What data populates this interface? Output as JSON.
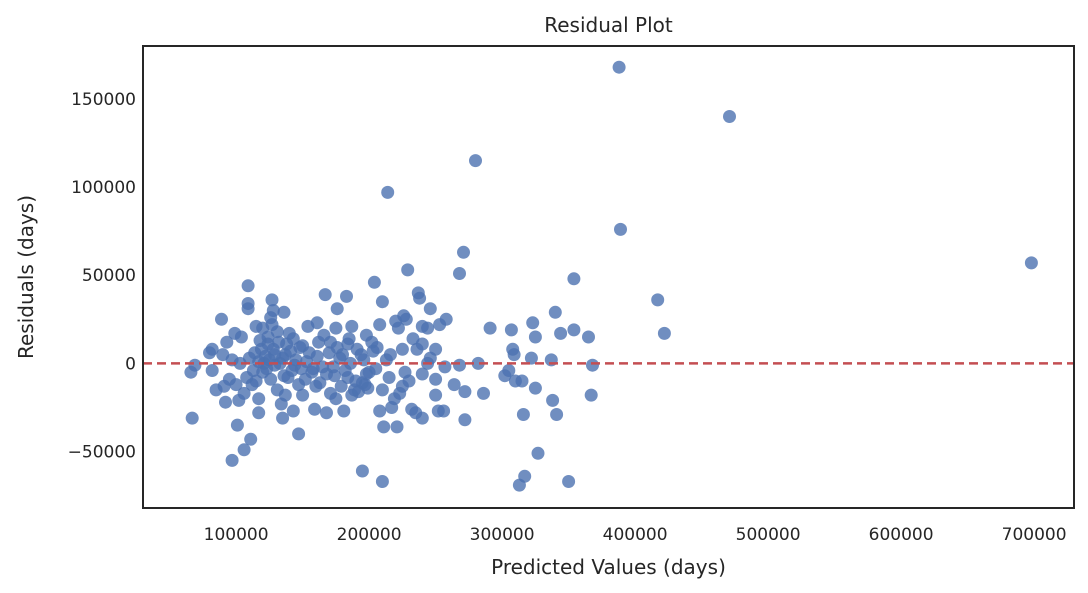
{
  "chart_data": {
    "type": "scatter",
    "title": "Residual Plot",
    "xlabel": "Predicted Values (days)",
    "ylabel": "Residuals (days)",
    "xlim": [
      30000,
      730000
    ],
    "ylim": [
      -82000,
      180000
    ],
    "xticks": [
      100000,
      200000,
      300000,
      400000,
      500000,
      600000,
      700000
    ],
    "yticks": [
      -50000,
      0,
      50000,
      100000,
      150000
    ],
    "grid": false,
    "point_color": "#4c72b0",
    "reference_line": {
      "y": 0,
      "color": "#c44e52",
      "style": "dashed"
    },
    "series": [
      {
        "points": [
          [
            388000,
            168000
          ],
          [
            471000,
            140000
          ],
          [
            280000,
            115000
          ],
          [
            214000,
            97000
          ],
          [
            389000,
            76000
          ],
          [
            698000,
            57000
          ],
          [
            271000,
            63000
          ],
          [
            229000,
            53000
          ],
          [
            268000,
            51000
          ],
          [
            354000,
            48000
          ],
          [
            204000,
            46000
          ],
          [
            109000,
            44000
          ],
          [
            237000,
            40000
          ],
          [
            167000,
            39000
          ],
          [
            183000,
            38000
          ],
          [
            417000,
            36000
          ],
          [
            127000,
            36000
          ],
          [
            238000,
            37000
          ],
          [
            210000,
            35000
          ],
          [
            109000,
            34000
          ],
          [
            340000,
            29000
          ],
          [
            109000,
            31000
          ],
          [
            128000,
            30000
          ],
          [
            136000,
            29000
          ],
          [
            176000,
            31000
          ],
          [
            246000,
            31000
          ],
          [
            258000,
            25000
          ],
          [
            89000,
            25000
          ],
          [
            226000,
            27000
          ],
          [
            253000,
            22000
          ],
          [
            228000,
            25000
          ],
          [
            220000,
            24000
          ],
          [
            208000,
            22000
          ],
          [
            187000,
            21000
          ],
          [
            175000,
            20000
          ],
          [
            154000,
            21000
          ],
          [
            127000,
            22000
          ],
          [
            115000,
            21000
          ],
          [
            222000,
            20000
          ],
          [
            244000,
            20000
          ],
          [
            240000,
            21000
          ],
          [
            291000,
            20000
          ],
          [
            307000,
            19000
          ],
          [
            354000,
            19000
          ],
          [
            323000,
            23000
          ],
          [
            422000,
            17000
          ],
          [
            365000,
            15000
          ],
          [
            344000,
            17000
          ],
          [
            325000,
            15000
          ],
          [
            240000,
            11000
          ],
          [
            236000,
            8000
          ],
          [
            250000,
            8000
          ],
          [
            308000,
            8000
          ],
          [
            309000,
            5000
          ],
          [
            322000,
            3000
          ],
          [
            337000,
            2000
          ],
          [
            368000,
            -1000
          ],
          [
            282000,
            0
          ],
          [
            268000,
            -1000
          ],
          [
            257000,
            -2000
          ],
          [
            244000,
            0
          ],
          [
            227000,
            -5000
          ],
          [
            213000,
            2000
          ],
          [
            198000,
            16000
          ],
          [
            184000,
            11000
          ],
          [
            161000,
            23000
          ],
          [
            150000,
            10000
          ],
          [
            140000,
            17000
          ],
          [
            132000,
            12000
          ],
          [
            124000,
            15000
          ],
          [
            118000,
            13000
          ],
          [
            104000,
            15000
          ],
          [
            99000,
            17000
          ],
          [
            93000,
            12000
          ],
          [
            82000,
            8000
          ],
          [
            80000,
            6000
          ],
          [
            69000,
            -1000
          ],
          [
            66000,
            -5000
          ],
          [
            67000,
            -31000
          ],
          [
            82000,
            -4000
          ],
          [
            90000,
            5000
          ],
          [
            97000,
            2000
          ],
          [
            103000,
            0
          ],
          [
            110000,
            3000
          ],
          [
            114000,
            6000
          ],
          [
            119000,
            8000
          ],
          [
            122000,
            4000
          ],
          [
            125000,
            2000
          ],
          [
            129000,
            -1000
          ],
          [
            133000,
            0
          ],
          [
            137000,
            5000
          ],
          [
            141000,
            7000
          ],
          [
            145000,
            2000
          ],
          [
            149000,
            -3000
          ],
          [
            153000,
            1000
          ],
          [
            157000,
            -5000
          ],
          [
            161000,
            4000
          ],
          [
            165000,
            -2000
          ],
          [
            170000,
            6000
          ],
          [
            174000,
            -7000
          ],
          [
            178000,
            3000
          ],
          [
            182000,
            -4000
          ],
          [
            186000,
            0
          ],
          [
            190000,
            -10000
          ],
          [
            194000,
            5000
          ],
          [
            198000,
            -6000
          ],
          [
            202000,
            12000
          ],
          [
            206000,
            9000
          ],
          [
            115000,
            -10000
          ],
          [
            120000,
            -5000
          ],
          [
            126000,
            -9000
          ],
          [
            131000,
            -15000
          ],
          [
            136000,
            -7000
          ],
          [
            142000,
            -4000
          ],
          [
            147000,
            -12000
          ],
          [
            152000,
            -9000
          ],
          [
            158000,
            -3000
          ],
          [
            163000,
            -11000
          ],
          [
            168000,
            -6000
          ],
          [
            173000,
            -2000
          ],
          [
            179000,
            -13000
          ],
          [
            184000,
            -8000
          ],
          [
            189000,
            -15000
          ],
          [
            195000,
            -11000
          ],
          [
            200000,
            -5000
          ],
          [
            85000,
            -15000
          ],
          [
            91000,
            -13000
          ],
          [
            95000,
            -9000
          ],
          [
            100000,
            -12000
          ],
          [
            106000,
            -17000
          ],
          [
            112000,
            -12000
          ],
          [
            117000,
            -20000
          ],
          [
            92000,
            -22000
          ],
          [
            102000,
            -21000
          ],
          [
            117000,
            -28000
          ],
          [
            134000,
            -23000
          ],
          [
            143000,
            -27000
          ],
          [
            159000,
            -26000
          ],
          [
            168000,
            -28000
          ],
          [
            181000,
            -27000
          ],
          [
            192000,
            -16000
          ],
          [
            197000,
            -12000
          ],
          [
            210000,
            -15000
          ],
          [
            219000,
            -20000
          ],
          [
            223000,
            -17000
          ],
          [
            232000,
            -26000
          ],
          [
            240000,
            -31000
          ],
          [
            221000,
            -36000
          ],
          [
            211000,
            -36000
          ],
          [
            208000,
            -27000
          ],
          [
            235000,
            -28000
          ],
          [
            252000,
            -27000
          ],
          [
            256000,
            -27000
          ],
          [
            272000,
            -32000
          ],
          [
            250000,
            -18000
          ],
          [
            264000,
            -12000
          ],
          [
            250000,
            -9000
          ],
          [
            286000,
            -17000
          ],
          [
            302000,
            -7000
          ],
          [
            310000,
            -10000
          ],
          [
            315000,
            -10000
          ],
          [
            325000,
            -14000
          ],
          [
            338000,
            -21000
          ],
          [
            316000,
            -29000
          ],
          [
            341000,
            -29000
          ],
          [
            367000,
            -18000
          ],
          [
            272000,
            -16000
          ],
          [
            305000,
            -4000
          ],
          [
            101000,
            -35000
          ],
          [
            111000,
            -43000
          ],
          [
            135000,
            -31000
          ],
          [
            147000,
            -40000
          ],
          [
            106000,
            -49000
          ],
          [
            97000,
            -55000
          ],
          [
            195000,
            -61000
          ],
          [
            210000,
            -67000
          ],
          [
            317000,
            -64000
          ],
          [
            313000,
            -69000
          ],
          [
            350000,
            -67000
          ],
          [
            327000,
            -51000
          ],
          [
            121000,
            0
          ],
          [
            128000,
            8000
          ],
          [
            135000,
            3000
          ],
          [
            144000,
            -1000
          ],
          [
            155000,
            6000
          ],
          [
            176000,
            9000
          ],
          [
            185000,
            14000
          ],
          [
            196000,
            2000
          ],
          [
            203000,
            7000
          ],
          [
            216000,
            5000
          ],
          [
            225000,
            8000
          ],
          [
            233000,
            14000
          ],
          [
            246000,
            3000
          ],
          [
            123000,
            -3000
          ],
          [
            139000,
            -8000
          ],
          [
            160000,
            -13000
          ],
          [
            171000,
            -17000
          ],
          [
            187000,
            -18000
          ],
          [
            199000,
            -14000
          ],
          [
            120000,
            20000
          ],
          [
            126000,
            26000
          ],
          [
            131000,
            18000
          ],
          [
            138000,
            11000
          ],
          [
            143000,
            14000
          ],
          [
            148000,
            9000
          ],
          [
            124000,
            11000
          ],
          [
            129000,
            5000
          ],
          [
            117000,
            1000
          ],
          [
            113000,
            -4000
          ],
          [
            108000,
            -8000
          ],
          [
            162000,
            12000
          ],
          [
            166000,
            16000
          ],
          [
            171000,
            12000
          ],
          [
            180000,
            5000
          ],
          [
            191000,
            8000
          ],
          [
            205000,
            -3000
          ],
          [
            215000,
            -8000
          ],
          [
            230000,
            -10000
          ],
          [
            240000,
            -6000
          ],
          [
            217000,
            -25000
          ],
          [
            225000,
            -13000
          ],
          [
            175000,
            -20000
          ],
          [
            150000,
            -18000
          ],
          [
            137000,
            -18000
          ]
        ]
      }
    ]
  }
}
